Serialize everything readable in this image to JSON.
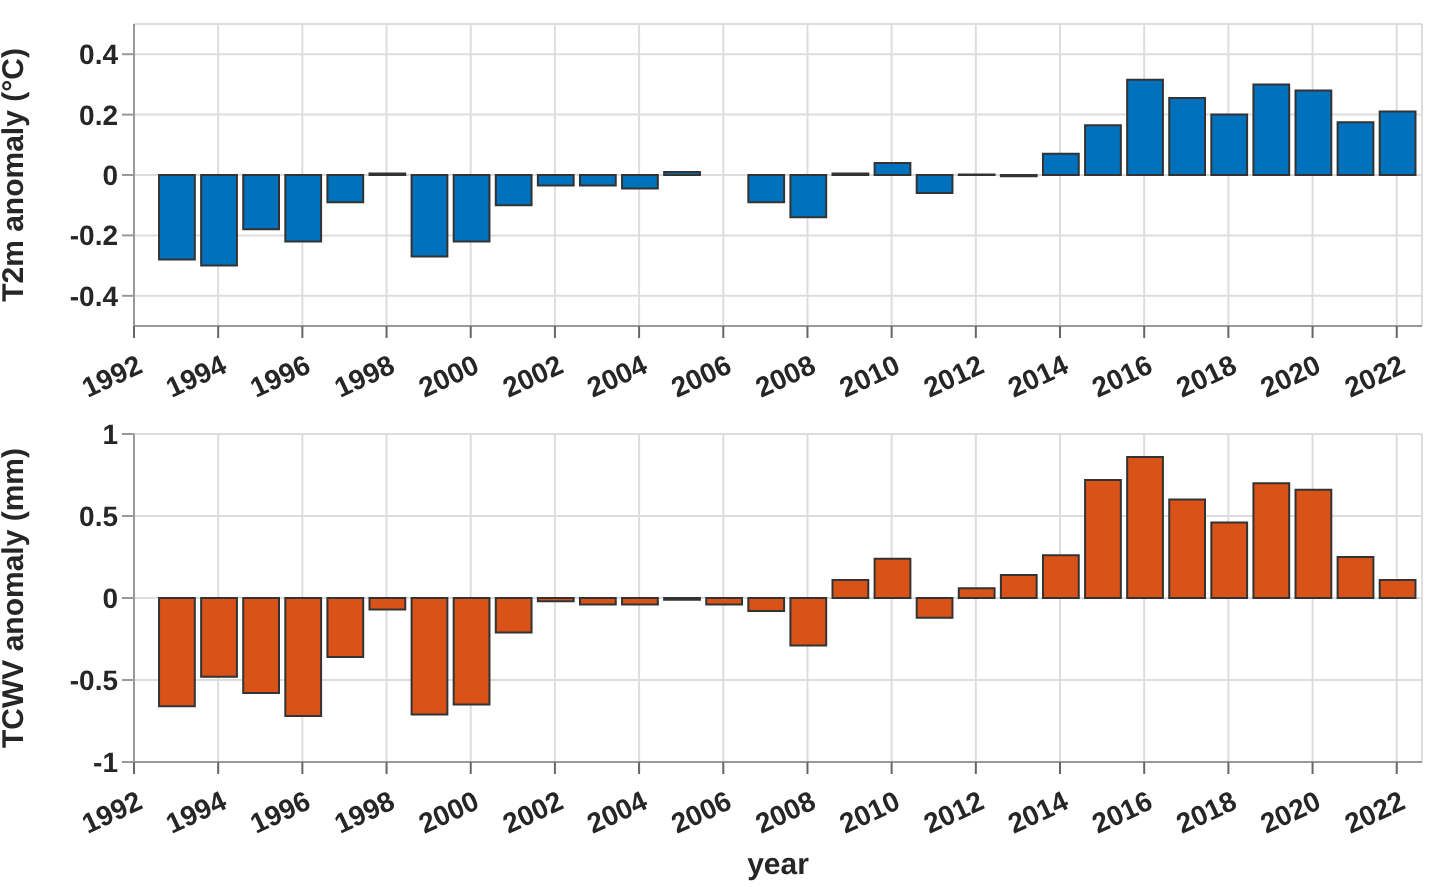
{
  "chart_data": [
    {
      "type": "bar",
      "ylabel": "T2m anomaly (°C)",
      "x": [
        1993,
        1994,
        1995,
        1996,
        1997,
        1998,
        1999,
        2000,
        2001,
        2002,
        2003,
        2004,
        2005,
        2006,
        2007,
        2008,
        2009,
        2010,
        2011,
        2012,
        2013,
        2014,
        2015,
        2016,
        2017,
        2018,
        2019,
        2020,
        2021,
        2022
      ],
      "values": [
        -0.28,
        -0.3,
        -0.18,
        -0.22,
        -0.09,
        0.005,
        -0.27,
        -0.22,
        -0.1,
        -0.035,
        -0.035,
        -0.045,
        0.01,
        0,
        -0.09,
        -0.14,
        0.005,
        0.04,
        -0.06,
        0.002,
        -0.004,
        0.07,
        0.165,
        0.315,
        0.255,
        0.2,
        0.3,
        0.28,
        0.175,
        0.21
      ],
      "color": "#0072bd",
      "xlim": [
        1992,
        2022.6
      ],
      "xticks": [
        1992,
        1994,
        1996,
        1998,
        2000,
        2002,
        2004,
        2006,
        2008,
        2010,
        2012,
        2014,
        2016,
        2018,
        2020,
        2022
      ],
      "ylim": [
        -0.5,
        0.5
      ],
      "yticks": [
        -0.4,
        -0.2,
        0,
        0.2,
        0.4
      ],
      "grid": true
    },
    {
      "type": "bar",
      "ylabel": "TCWV anomaly (mm)",
      "xlabel": "year",
      "x": [
        1993,
        1994,
        1995,
        1996,
        1997,
        1998,
        1999,
        2000,
        2001,
        2002,
        2003,
        2004,
        2005,
        2006,
        2007,
        2008,
        2009,
        2010,
        2011,
        2012,
        2013,
        2014,
        2015,
        2016,
        2017,
        2018,
        2019,
        2020,
        2021,
        2022
      ],
      "values": [
        -0.66,
        -0.48,
        -0.58,
        -0.72,
        -0.36,
        -0.07,
        -0.71,
        -0.65,
        -0.21,
        -0.02,
        -0.04,
        -0.04,
        -0.01,
        -0.04,
        -0.08,
        -0.29,
        0.11,
        0.24,
        -0.12,
        0.06,
        0.14,
        0.26,
        0.72,
        0.86,
        0.6,
        0.46,
        0.7,
        0.66,
        0.25,
        0.11
      ],
      "color": "#d95319",
      "xlim": [
        1992,
        2022.6
      ],
      "xticks": [
        1992,
        1994,
        1996,
        1998,
        2000,
        2002,
        2004,
        2006,
        2008,
        2010,
        2012,
        2014,
        2016,
        2018,
        2020,
        2022
      ],
      "ylim": [
        -1,
        1
      ],
      "yticks": [
        -1,
        -0.5,
        0,
        0.5,
        1
      ],
      "grid": true
    }
  ]
}
